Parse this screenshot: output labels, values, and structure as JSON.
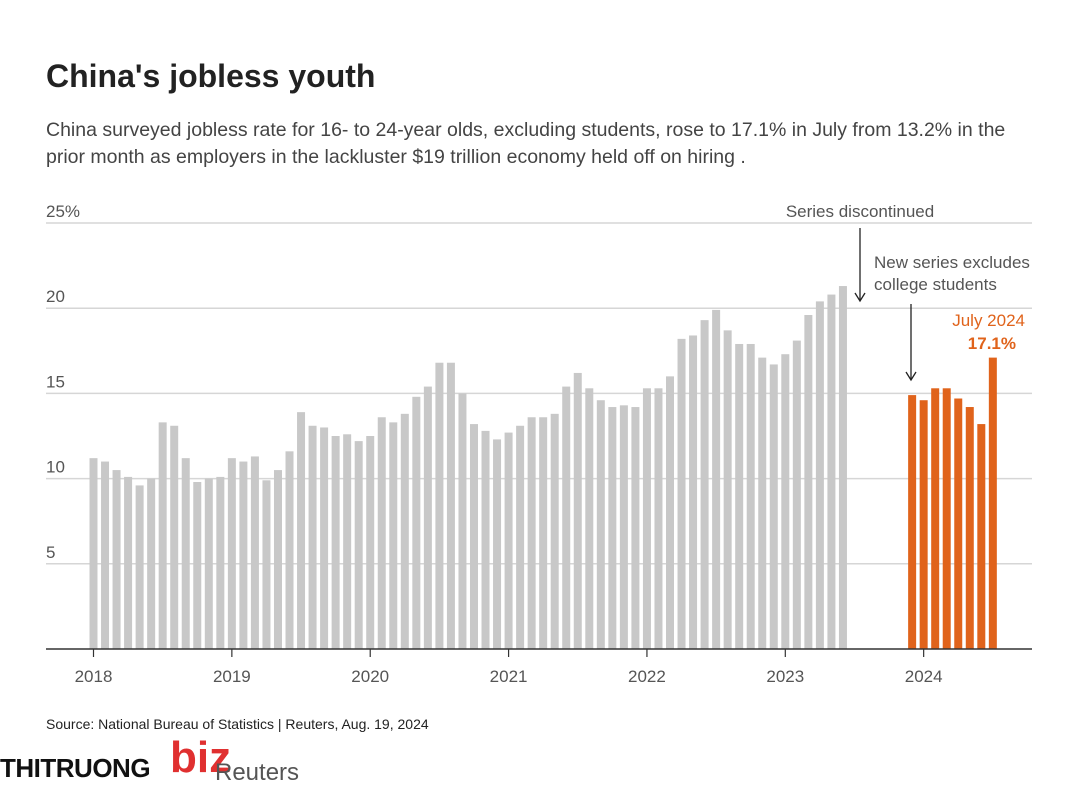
{
  "title": "China's jobless youth",
  "subtitle": "China surveyed jobless rate for 16- to 24-year olds, excluding students, rose to 17.1% in July from 13.2% in the prior month as employers in the lackluster $19 trillion economy held off on hiring .",
  "source": "Source: National Bureau of Statistics | Reuters, Aug. 19, 2024",
  "watermark": {
    "text": "THITRUONG",
    "accent": "biz",
    "overlay": "Reuters"
  },
  "colors": {
    "old_series": "#c8c8c8",
    "new_series": "#e0631b",
    "grid": "#d6d6d6",
    "axis": "#333333",
    "annotation": "#555555"
  },
  "chart_data": {
    "type": "bar",
    "ylim": [
      0,
      25
    ],
    "grid": true,
    "y_ticks": [
      {
        "value": 5,
        "label": "5"
      },
      {
        "value": 10,
        "label": "10"
      },
      {
        "value": 15,
        "label": "15"
      },
      {
        "value": 20,
        "label": "20"
      },
      {
        "value": 25,
        "label": "25%"
      }
    ],
    "x_ticks": [
      "2018",
      "2019",
      "2020",
      "2021",
      "2022",
      "2023",
      "2024"
    ],
    "series": [
      {
        "start": "2018-01",
        "values": [
          11.2,
          11.0,
          10.5,
          10.1,
          9.6,
          10.0,
          13.3,
          13.1,
          11.2,
          9.8,
          10.0,
          10.1,
          11.2,
          11.0,
          11.3,
          9.9,
          10.5,
          11.6,
          13.9,
          13.1,
          13.0,
          12.5,
          12.6,
          12.2,
          12.5,
          13.6,
          13.3,
          13.8,
          14.8,
          15.4,
          16.8,
          16.8,
          15.0,
          13.2,
          12.8,
          12.3,
          12.7,
          13.1,
          13.6,
          13.6,
          13.8,
          15.4,
          16.2,
          15.3,
          14.6,
          14.2,
          14.3,
          14.2,
          15.3,
          15.3,
          16.0,
          18.2,
          18.4,
          19.3,
          19.9,
          18.7,
          17.9,
          17.9,
          17.1,
          16.7,
          17.3,
          18.1,
          19.6,
          20.4,
          20.8,
          21.3
        ]
      },
      {
        "start": "2023-12",
        "values": [
          14.9,
          14.6,
          15.3,
          15.3,
          14.7,
          14.2,
          13.2,
          17.1
        ]
      }
    ],
    "annotations": {
      "discontinued": "Series discontinued",
      "new_series_1": "New series excludes",
      "new_series_2": "college students",
      "latest_month": "July 2024",
      "latest_value": "17.1%"
    }
  }
}
